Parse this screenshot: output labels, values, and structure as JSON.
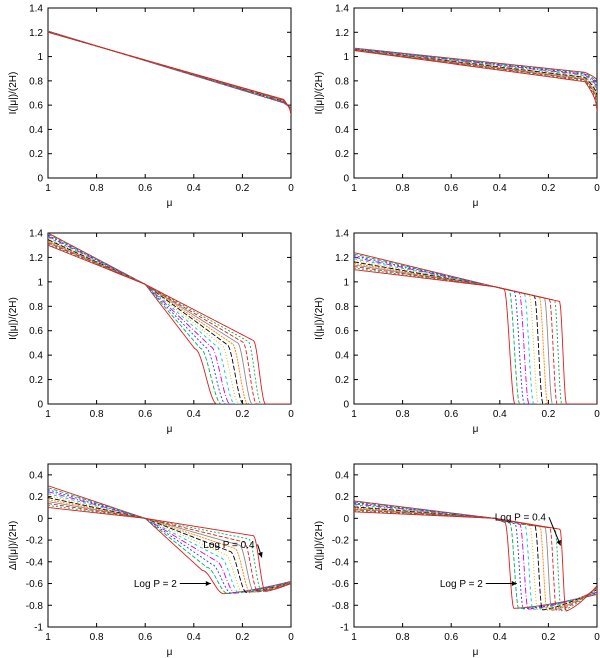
{
  "figure": {
    "description_free": true
  },
  "chart_data": [
    {
      "type": "line",
      "panel": "top-left",
      "xlabel": "μ",
      "ylabel": "I(|μ|)/(2H)",
      "xlim": [
        1,
        0
      ],
      "ylim": [
        0,
        1.4
      ],
      "xticks": [
        1,
        0.8,
        0.6,
        0.4,
        0.2,
        0
      ],
      "xtick_labels": [
        "1",
        "0.8",
        "0.6",
        "0.4",
        "0.2",
        "0"
      ],
      "yticks": [
        0,
        0.2,
        0.4,
        0.6,
        0.8,
        1,
        1.2,
        1.4
      ],
      "ytick_labels": [
        "0",
        "0.2",
        "0.4",
        "0.6",
        "0.8",
        "1",
        "1.2",
        "1.4"
      ],
      "model": {
        "kind": "linear",
        "a_range": [
          1.21,
          1.2
        ],
        "b_range": [
          0.6,
          0.63
        ],
        "end_range": [
          0.57,
          0.52
        ],
        "ls": 0.03
      },
      "series_count": 12,
      "annotations": []
    },
    {
      "type": "line",
      "panel": "top-right",
      "xlabel": "μ",
      "ylabel": "I(|μ|)/(2H)",
      "xlim": [
        1,
        0
      ],
      "ylim": [
        0,
        1.4
      ],
      "xticks": [
        1,
        0.8,
        0.6,
        0.4,
        0.2,
        0
      ],
      "xtick_labels": [
        "1",
        "0.8",
        "0.6",
        "0.4",
        "0.2",
        "0"
      ],
      "yticks": [
        0,
        0.2,
        0.4,
        0.6,
        0.8,
        1,
        1.2,
        1.4
      ],
      "ytick_labels": [
        "0",
        "0.2",
        "0.4",
        "0.6",
        "0.8",
        "1",
        "1.2",
        "1.4"
      ],
      "model": {
        "kind": "linear",
        "a_range": [
          1.07,
          1.05
        ],
        "b_range": [
          0.86,
          0.78
        ],
        "end_range": [
          0.8,
          0.55
        ],
        "ls": 0.05
      },
      "series_count": 12,
      "annotations": []
    },
    {
      "type": "line",
      "panel": "middle-left",
      "xlabel": "μ",
      "ylabel": "I(|μ|)/(2H)",
      "xlim": [
        1,
        0
      ],
      "ylim": [
        0,
        1.4
      ],
      "xticks": [
        1,
        0.8,
        0.6,
        0.4,
        0.2,
        0
      ],
      "xtick_labels": [
        "1",
        "0.8",
        "0.6",
        "0.4",
        "0.2",
        "0"
      ],
      "yticks": [
        0,
        0.2,
        0.4,
        0.6,
        0.8,
        1,
        1.2,
        1.4
      ],
      "ytick_labels": [
        "0",
        "0.2",
        "0.4",
        "0.6",
        "0.8",
        "1",
        "1.2",
        "1.4"
      ],
      "model": {
        "kind": "cliff",
        "pivot": 0.6,
        "pivot_value": 0.98,
        "start_range": [
          1.4,
          1.3
        ],
        "mid_range": [
          0.35,
          0.13
        ],
        "pre_range": [
          0.45,
          0.52
        ],
        "low_range": [
          0,
          0
        ],
        "end_range": [
          0,
          0
        ],
        "rise_range": [
          0.7,
          0.8
        ],
        "w_range": [
          0.045,
          0.025
        ],
        "ramp": 0.08
      },
      "series_count": 12,
      "annotations": []
    },
    {
      "type": "line",
      "panel": "middle-right",
      "xlabel": "μ",
      "ylabel": "I(|μ|)/(2H)",
      "xlim": [
        1,
        0
      ],
      "ylim": [
        0,
        1.4
      ],
      "xticks": [
        1,
        0.8,
        0.6,
        0.4,
        0.2,
        0
      ],
      "xtick_labels": [
        "1",
        "0.8",
        "0.6",
        "0.4",
        "0.2",
        "0"
      ],
      "yticks": [
        0,
        0.2,
        0.4,
        0.6,
        0.8,
        1,
        1.2,
        1.4
      ],
      "ytick_labels": [
        "0",
        "0.2",
        "0.4",
        "0.6",
        "0.8",
        "1",
        "1.2",
        "1.4"
      ],
      "model": {
        "kind": "cliff",
        "pivot": 0.42,
        "pivot_value": 0.96,
        "start_range": [
          1.24,
          1.1
        ],
        "mid_range": [
          0.36,
          0.14
        ],
        "pre_range": [
          0.94,
          0.84
        ],
        "low_range": [
          0,
          0
        ],
        "end_range": [
          0,
          0
        ],
        "rise_range": [
          0.85,
          0.85
        ],
        "w_range": [
          0.022,
          0.014
        ],
        "ramp": 0.06
      },
      "series_count": 12,
      "annotations": []
    },
    {
      "type": "line",
      "panel": "bottom-left",
      "xlabel": "μ",
      "ylabel": "ΔI(|μ|)/(2H)",
      "xlim": [
        1,
        0
      ],
      "ylim": [
        -1,
        0.5
      ],
      "xticks": [
        1,
        0.8,
        0.6,
        0.4,
        0.2,
        0
      ],
      "xtick_labels": [
        "1",
        "0.8",
        "0.6",
        "0.4",
        "0.2",
        "0"
      ],
      "yticks": [
        -1,
        -0.8,
        -0.6,
        -0.4,
        -0.2,
        0,
        0.2,
        0.4
      ],
      "ytick_labels": [
        "-1",
        "-0.8",
        "-0.6",
        "-0.4",
        "-0.2",
        "0",
        "0.2",
        "0.4"
      ],
      "model": {
        "kind": "cliff",
        "pivot": 0.6,
        "pivot_value": 0,
        "start_range": [
          0.3,
          0.1
        ],
        "mid_range": [
          0.32,
          0.13
        ],
        "pre_range": [
          -0.48,
          -0.16
        ],
        "low_range": [
          -0.7,
          -0.68
        ],
        "end_range": [
          -0.58,
          -0.6
        ],
        "rise_range": [
          0.4,
          0.7
        ],
        "w_range": [
          0.045,
          0.025
        ],
        "ramp": 0.08
      },
      "series_count": 12,
      "annotations": [
        {
          "text": "Log P = 0.4",
          "target_x": 0.12,
          "target_y": -0.36,
          "label_x": 0.15,
          "label_y": -0.24
        },
        {
          "text": "Log P = 2",
          "target_x": 0.33,
          "target_y": -0.6,
          "label_x": 0.47,
          "label_y": -0.6
        }
      ]
    },
    {
      "type": "line",
      "panel": "bottom-right",
      "xlabel": "μ",
      "ylabel": "ΔI(|μ|)/(2H)",
      "xlim": [
        1,
        0
      ],
      "ylim": [
        -1,
        0.5
      ],
      "xticks": [
        1,
        0.8,
        0.6,
        0.4,
        0.2,
        0
      ],
      "xtick_labels": [
        "1",
        "0.8",
        "0.6",
        "0.4",
        "0.2",
        "0"
      ],
      "yticks": [
        -1,
        -0.8,
        -0.6,
        -0.4,
        -0.2,
        0,
        0.2,
        0.4
      ],
      "ytick_labels": [
        "-1",
        "-0.8",
        "-0.6",
        "-0.4",
        "-0.2",
        "0",
        "0.2",
        "0.4"
      ],
      "model": {
        "kind": "cliff",
        "pivot": 0.42,
        "pivot_value": 0,
        "start_range": [
          0.16,
          0.06
        ],
        "mid_range": [
          0.36,
          0.14
        ],
        "pre_range": [
          -0.04,
          -0.1
        ],
        "low_range": [
          -0.83,
          -0.86
        ],
        "end_range": [
          -0.7,
          -0.62
        ],
        "rise_range": [
          0.2,
          0.3
        ],
        "w_range": [
          0.018,
          0.012
        ],
        "ramp": 0.06
      },
      "series_count": 12,
      "annotations": [
        {
          "text": "Log P = 0.4",
          "target_x": 0.15,
          "target_y": -0.25,
          "label_x": 0.21,
          "label_y": 0.01
        },
        {
          "text": "Log P = 2",
          "target_x": 0.33,
          "target_y": -0.6,
          "label_x": 0.47,
          "label_y": -0.6
        }
      ]
    }
  ],
  "series_colors": [
    "#e41a1c",
    "#00b050",
    "#1f3fff",
    "#d400d4",
    "#00c8c8",
    "#d4b800",
    "#000000",
    "#ff7f00",
    "#8a8a8a",
    "#e41a1c",
    "#00b050",
    "#e41a1c"
  ],
  "series_dashes": [
    "",
    "4,2",
    "2,2",
    "6,2,1,2",
    "3,3",
    "1,2",
    "5,2",
    "2,1",
    "",
    "4,2",
    "2,2",
    ""
  ]
}
